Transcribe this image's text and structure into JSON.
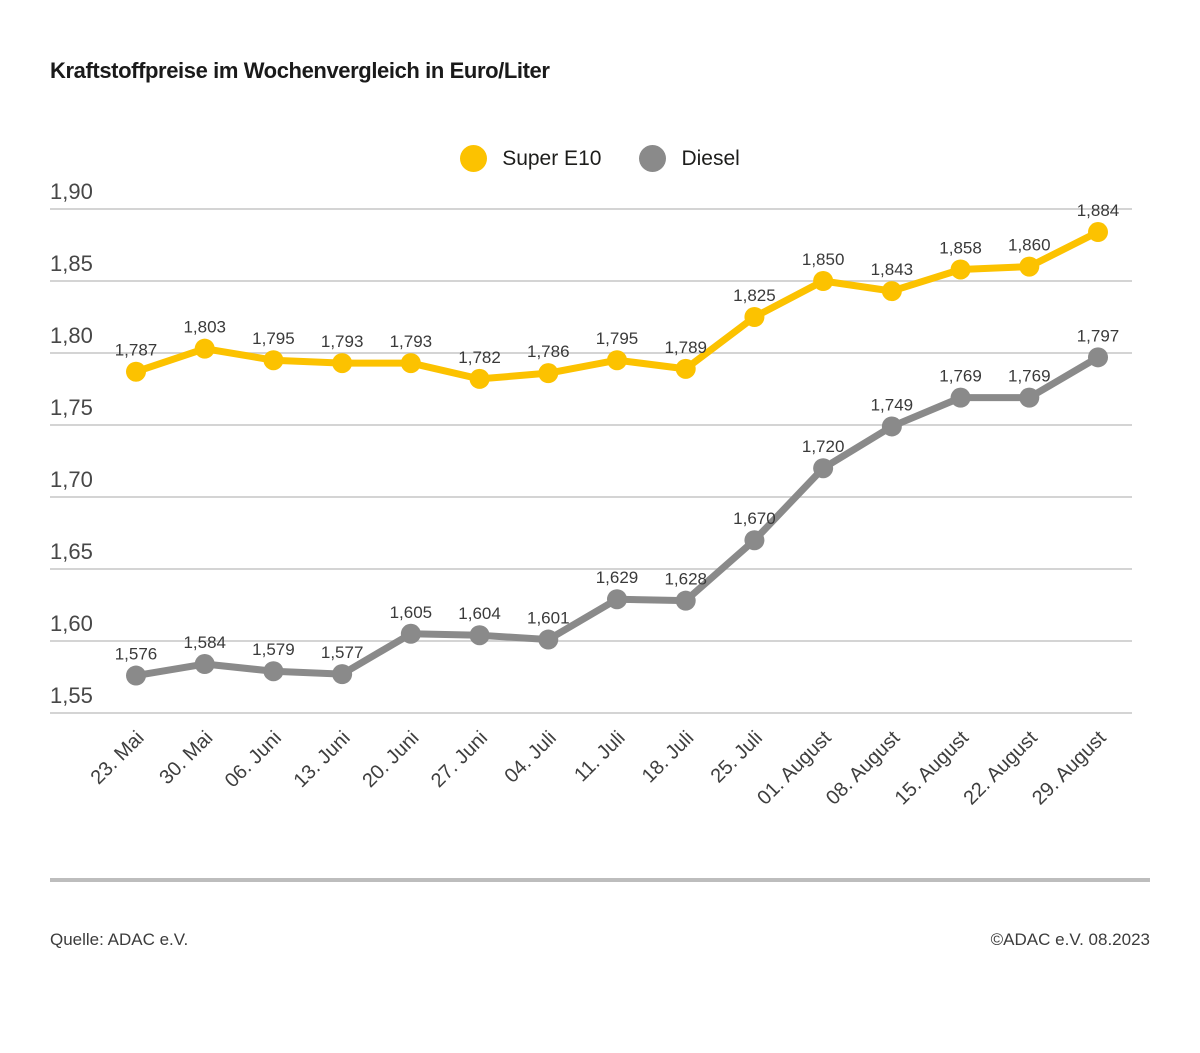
{
  "title": "Kraftstoffpreise im Wochenvergleich in Euro/Liter",
  "footer": {
    "source": "Quelle: ADAC e.V.",
    "copyright": "©ADAC e.V. 08.2023"
  },
  "chart_data": {
    "type": "line",
    "title": "Kraftstoffpreise im Wochenvergleich in Euro/Liter",
    "unit": "Euro/Liter",
    "categories": [
      "23. Mai",
      "30. Mai",
      "06. Juni",
      "13. Juni",
      "20. Juni",
      "27. Juni",
      "04. Juli",
      "11. Juli",
      "18. Juli",
      "25. Juli",
      "01. August",
      "08. August",
      "15. August",
      "22. August",
      "29. August"
    ],
    "series": [
      {
        "name": "Super E10",
        "color": "#FCC200",
        "values": [
          1.787,
          1.803,
          1.795,
          1.793,
          1.793,
          1.782,
          1.786,
          1.795,
          1.789,
          1.825,
          1.85,
          1.843,
          1.858,
          1.86,
          1.884
        ],
        "point_labels": [
          "1,787",
          "1,803",
          "1,795",
          "1,793",
          "1,793",
          "1,782",
          "1,786",
          "1,795",
          "1,789",
          "1,825",
          "1,850",
          "1,843",
          "1,858",
          "1,860",
          "1,884"
        ]
      },
      {
        "name": "Diesel",
        "color": "#8A8A8A",
        "values": [
          1.576,
          1.584,
          1.579,
          1.577,
          1.605,
          1.604,
          1.601,
          1.629,
          1.628,
          1.67,
          1.72,
          1.749,
          1.769,
          1.769,
          1.797
        ],
        "point_labels": [
          "1,576",
          "1,584",
          "1,579",
          "1,577",
          "1,605",
          "1,604",
          "1,601",
          "1,629",
          "1,628",
          "1,670",
          "1,720",
          "1,749",
          "1,769",
          "1,769",
          "1,797"
        ]
      }
    ],
    "ylim": [
      1.55,
      1.9
    ],
    "ytick_step": 0.05,
    "ytick_labels": [
      "1,90",
      "1,85",
      "1,80",
      "1,75",
      "1,70",
      "1,65",
      "1,60",
      "1,55"
    ],
    "grid": true,
    "legend_position": "top-center",
    "x_labels_rotation": -45
  }
}
